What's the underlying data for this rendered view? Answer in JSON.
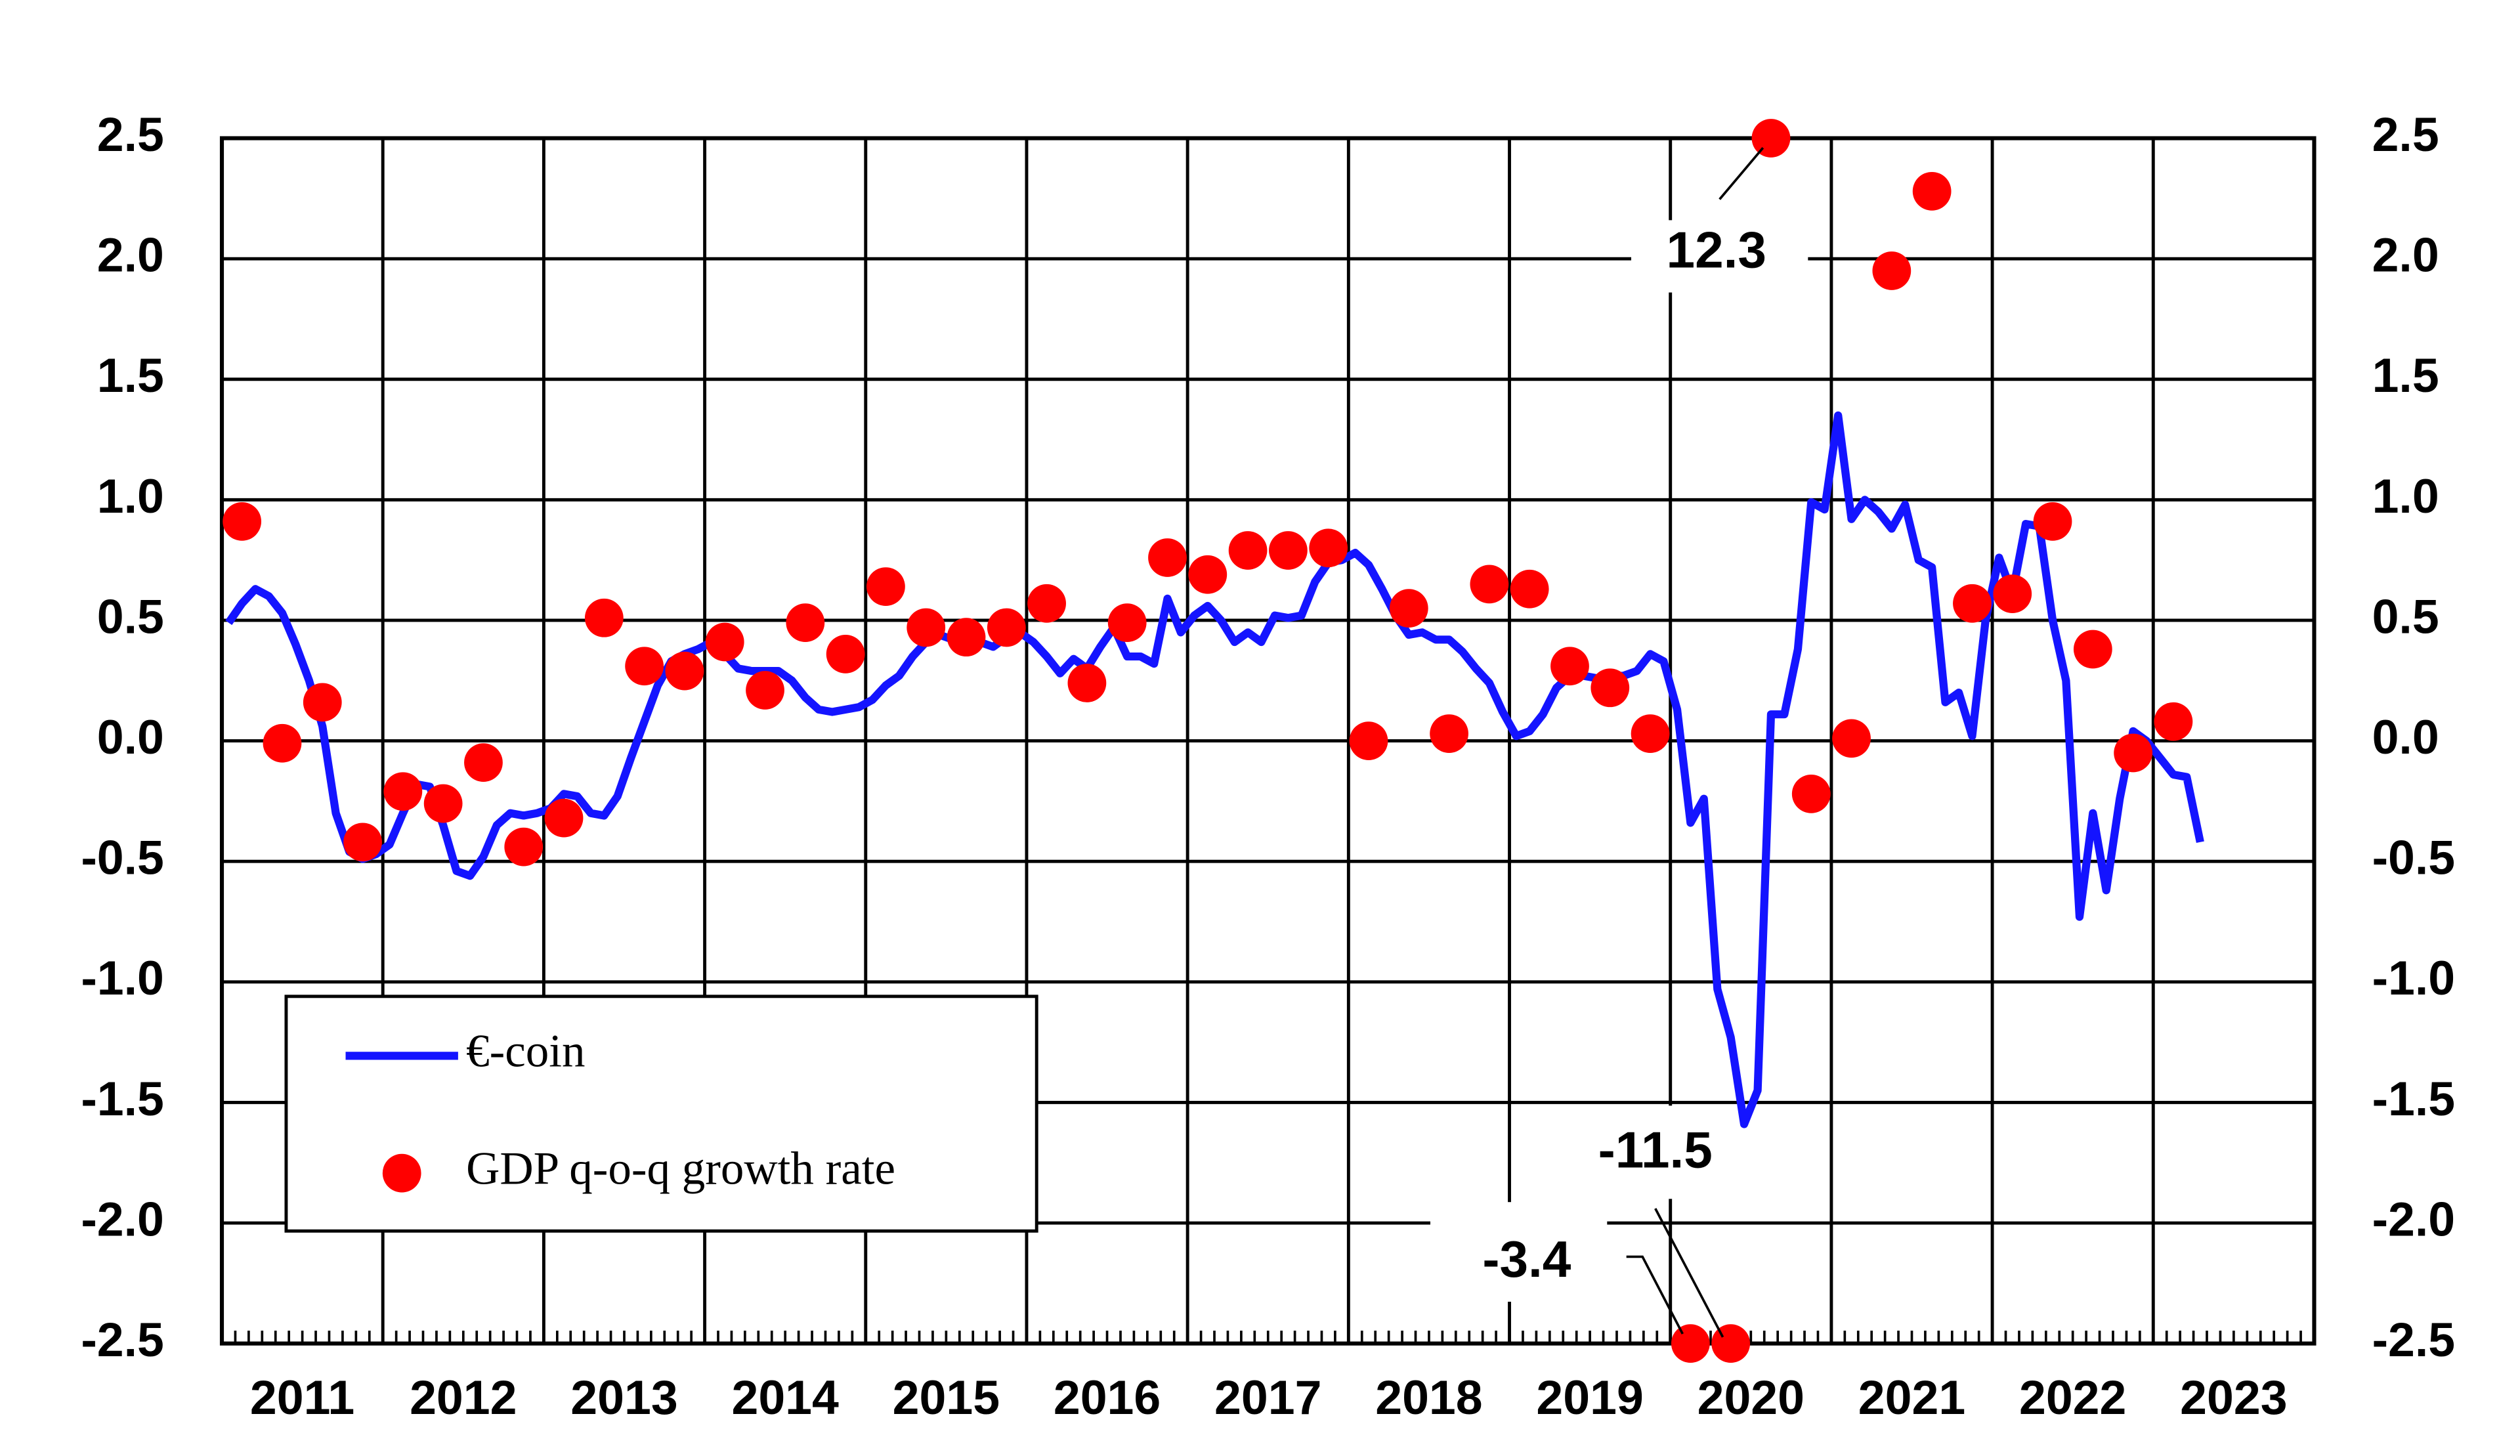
{
  "chart_data": {
    "type": "line",
    "series": [
      {
        "name": "€-coin",
        "type": "line",
        "color": "#1414ff",
        "x": [
          2011.042,
          2011.125,
          2011.208,
          2011.292,
          2011.375,
          2011.458,
          2011.542,
          2011.625,
          2011.708,
          2011.792,
          2011.875,
          2011.958,
          2012.042,
          2012.125,
          2012.208,
          2012.292,
          2012.375,
          2012.458,
          2012.542,
          2012.625,
          2012.708,
          2012.792,
          2012.875,
          2012.958,
          2013.042,
          2013.125,
          2013.208,
          2013.292,
          2013.375,
          2013.458,
          2013.542,
          2013.625,
          2013.708,
          2013.792,
          2013.875,
          2013.958,
          2014.042,
          2014.125,
          2014.208,
          2014.292,
          2014.375,
          2014.458,
          2014.542,
          2014.625,
          2014.708,
          2014.792,
          2014.875,
          2014.958,
          2015.042,
          2015.125,
          2015.208,
          2015.292,
          2015.375,
          2015.458,
          2015.542,
          2015.625,
          2015.708,
          2015.792,
          2015.875,
          2015.958,
          2016.042,
          2016.125,
          2016.208,
          2016.292,
          2016.375,
          2016.458,
          2016.542,
          2016.625,
          2016.708,
          2016.792,
          2016.875,
          2016.958,
          2017.042,
          2017.125,
          2017.208,
          2017.292,
          2017.375,
          2017.458,
          2017.542,
          2017.625,
          2017.708,
          2017.792,
          2017.875,
          2017.958,
          2018.042,
          2018.125,
          2018.208,
          2018.292,
          2018.375,
          2018.458,
          2018.542,
          2018.625,
          2018.708,
          2018.792,
          2018.875,
          2018.958,
          2019.042,
          2019.125,
          2019.208,
          2019.292,
          2019.375,
          2019.458,
          2019.542,
          2019.625,
          2019.708,
          2019.792,
          2019.875,
          2019.958,
          2020.042,
          2020.125,
          2020.208,
          2020.292,
          2020.375,
          2020.458,
          2020.542,
          2020.625,
          2020.708,
          2020.792,
          2020.875,
          2020.958,
          2021.042,
          2021.125,
          2021.208,
          2021.292,
          2021.375,
          2021.458,
          2021.542,
          2021.625,
          2021.708,
          2021.792,
          2021.875,
          2021.958,
          2022.042,
          2022.125,
          2022.208,
          2022.292,
          2022.375,
          2022.458,
          2022.542,
          2022.625,
          2022.708,
          2022.792,
          2022.875,
          2022.958,
          2023.042,
          2023.125,
          2023.208,
          2023.292
        ],
        "values": [
          0.49,
          0.57,
          0.63,
          0.6,
          0.53,
          0.4,
          0.25,
          0.06,
          -0.3,
          -0.46,
          -0.49,
          -0.47,
          -0.43,
          -0.3,
          -0.18,
          -0.19,
          -0.35,
          -0.54,
          -0.56,
          -0.48,
          -0.35,
          -0.3,
          -0.31,
          -0.3,
          -0.28,
          -0.22,
          -0.23,
          -0.3,
          -0.31,
          -0.23,
          -0.07,
          0.08,
          0.23,
          0.33,
          0.36,
          0.38,
          0.41,
          0.36,
          0.3,
          0.29,
          0.29,
          0.29,
          0.25,
          0.18,
          0.13,
          0.12,
          0.13,
          0.14,
          0.17,
          0.23,
          0.27,
          0.35,
          0.41,
          0.44,
          0.42,
          0.43,
          0.41,
          0.39,
          0.43,
          0.45,
          0.41,
          0.35,
          0.28,
          0.34,
          0.3,
          0.39,
          0.47,
          0.35,
          0.35,
          0.32,
          0.59,
          0.45,
          0.52,
          0.56,
          0.5,
          0.41,
          0.45,
          0.41,
          0.52,
          0.51,
          0.52,
          0.66,
          0.74,
          0.75,
          0.78,
          0.73,
          0.63,
          0.52,
          0.44,
          0.45,
          0.42,
          0.42,
          0.37,
          0.3,
          0.24,
          0.12,
          0.02,
          0.04,
          0.11,
          0.22,
          0.27,
          0.27,
          0.26,
          0.27,
          0.27,
          0.29,
          0.36,
          0.33,
          0.13,
          -0.34,
          -0.24,
          -1.03,
          -1.23,
          -1.59,
          -1.45,
          0.11,
          0.11,
          0.38,
          0.99,
          0.96,
          1.35,
          0.92,
          1.0,
          0.95,
          0.88,
          0.98,
          0.75,
          0.72,
          0.16,
          0.2,
          0.02,
          0.5,
          0.76,
          0.61,
          0.9,
          0.89,
          0.5,
          0.25,
          -0.73,
          -0.3,
          -0.62,
          -0.24,
          0.04,
          0.0,
          -0.07,
          -0.14,
          -0.15,
          -0.42
        ]
      },
      {
        "name": "GDP q-o-q growth rate",
        "type": "scatter",
        "color": "#ff0000",
        "x": [
          2011.125,
          2011.375,
          2011.625,
          2011.875,
          2012.125,
          2012.375,
          2012.625,
          2012.875,
          2013.125,
          2013.375,
          2013.625,
          2013.875,
          2014.125,
          2014.375,
          2014.625,
          2014.875,
          2015.125,
          2015.375,
          2015.625,
          2015.875,
          2016.125,
          2016.375,
          2016.625,
          2016.875,
          2017.125,
          2017.375,
          2017.625,
          2017.875,
          2018.125,
          2018.375,
          2018.625,
          2018.875,
          2019.125,
          2019.375,
          2019.625,
          2019.875,
          2020.125,
          2020.375,
          2020.625,
          2020.875,
          2021.125,
          2021.375,
          2021.625,
          2021.875,
          2022.125,
          2022.375,
          2022.625,
          2022.875,
          2023.125
        ],
        "values": [
          0.91,
          -0.01,
          0.16,
          -0.42,
          -0.21,
          -0.26,
          -0.09,
          -0.44,
          -0.32,
          0.51,
          0.31,
          0.29,
          0.41,
          0.21,
          0.49,
          0.36,
          0.64,
          0.47,
          0.43,
          0.47,
          0.57,
          0.24,
          0.49,
          0.76,
          0.69,
          0.79,
          0.79,
          0.8,
          0.0,
          0.55,
          0.03,
          0.65,
          0.63,
          0.31,
          0.22,
          0.03,
          -2.5,
          -2.5,
          2.5,
          -0.22,
          0.01,
          1.95,
          2.28,
          0.57,
          0.61,
          0.91,
          0.38,
          -0.05,
          0.08
        ]
      }
    ],
    "annotations": [
      "12.3",
      "-11.5",
      "-3.4"
    ],
    "xlim": [
      2011,
      2024
    ],
    "xticks": [
      2011,
      2012,
      2013,
      2014,
      2015,
      2016,
      2017,
      2018,
      2019,
      2020,
      2021,
      2022,
      2023
    ],
    "ylim": [
      -2.5,
      2.5
    ],
    "yticks": [
      -2.5,
      {
        "value": -2,
        "label": "-2.0"
      },
      -1.5,
      {
        "value": -1,
        "label": "-1.0"
      },
      -0.5,
      {
        "value": 0,
        "label": "0.0"
      },
      0.5,
      {
        "value": 1,
        "label": "1.0"
      },
      1.5,
      {
        "value": 2,
        "label": "2.0"
      },
      2.5
    ],
    "y2lim": [
      -2.5,
      2.5
    ],
    "y2ticks": [
      -2.5,
      {
        "value": -2,
        "label": "-2.0"
      },
      -1.5,
      {
        "value": -1,
        "label": "-1.0"
      },
      -0.5,
      {
        "value": 0,
        "label": "0.0"
      },
      0.5,
      {
        "value": 1,
        "label": "1.0"
      },
      1.5,
      {
        "value": 2,
        "label": "2.0"
      },
      2.5
    ],
    "grid": true,
    "legend": "lower left"
  }
}
